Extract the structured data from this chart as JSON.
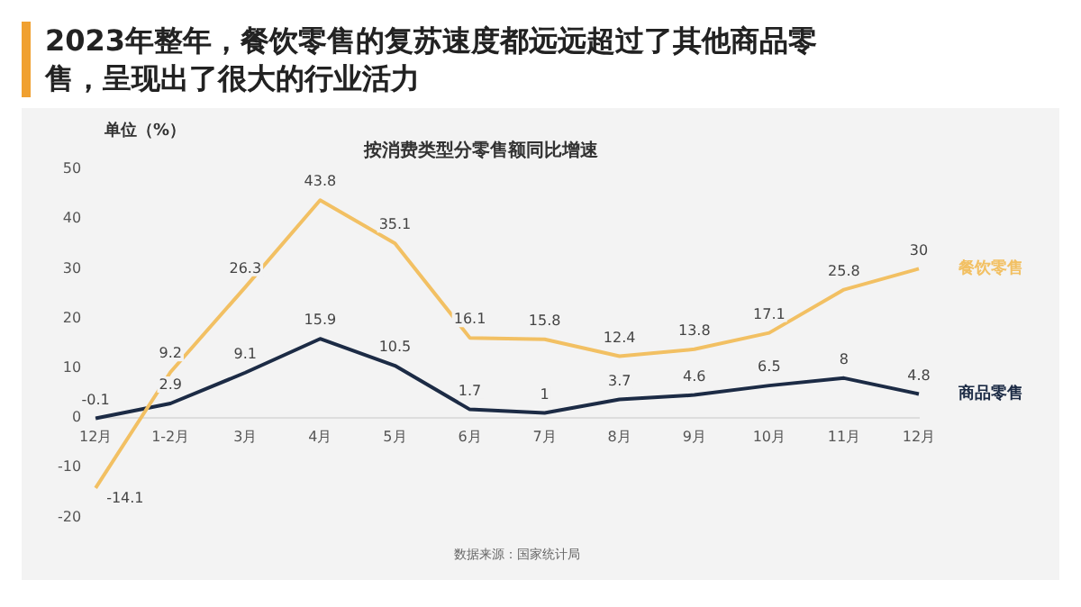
{
  "chart_data": {
    "type": "line",
    "title": "2023年整年，餐饮零售的复苏速度都远远超过了其他商品零售，呈现出了很大的行业活力",
    "subtitle": "按消费类型分零售额同比增速",
    "ylabel": "单位（%）",
    "categories": [
      "12月",
      "1-2月",
      "3月",
      "4月",
      "5月",
      "6月",
      "7月",
      "8月",
      "9月",
      "10月",
      "11月",
      "12月"
    ],
    "series": [
      {
        "name": "餐饮零售",
        "color": "#f2c063",
        "values": [
          -14.1,
          9.2,
          26.3,
          43.8,
          35.1,
          16.1,
          15.8,
          12.4,
          13.8,
          17.1,
          25.8,
          30
        ]
      },
      {
        "name": "商品零售",
        "color": "#1c2b45",
        "values": [
          -0.1,
          2.9,
          9.1,
          15.9,
          10.5,
          1.7,
          1,
          3.7,
          4.6,
          6.5,
          8,
          4.8
        ]
      }
    ],
    "ylim": [
      -20,
      50
    ],
    "yticks": [
      -20,
      -10,
      0,
      10,
      20,
      30,
      40,
      50
    ],
    "grid": false,
    "legend": false,
    "marker": "none",
    "line_style": "solid",
    "data_labels": true,
    "annotations": [
      "数据来源：国家统计局"
    ]
  }
}
